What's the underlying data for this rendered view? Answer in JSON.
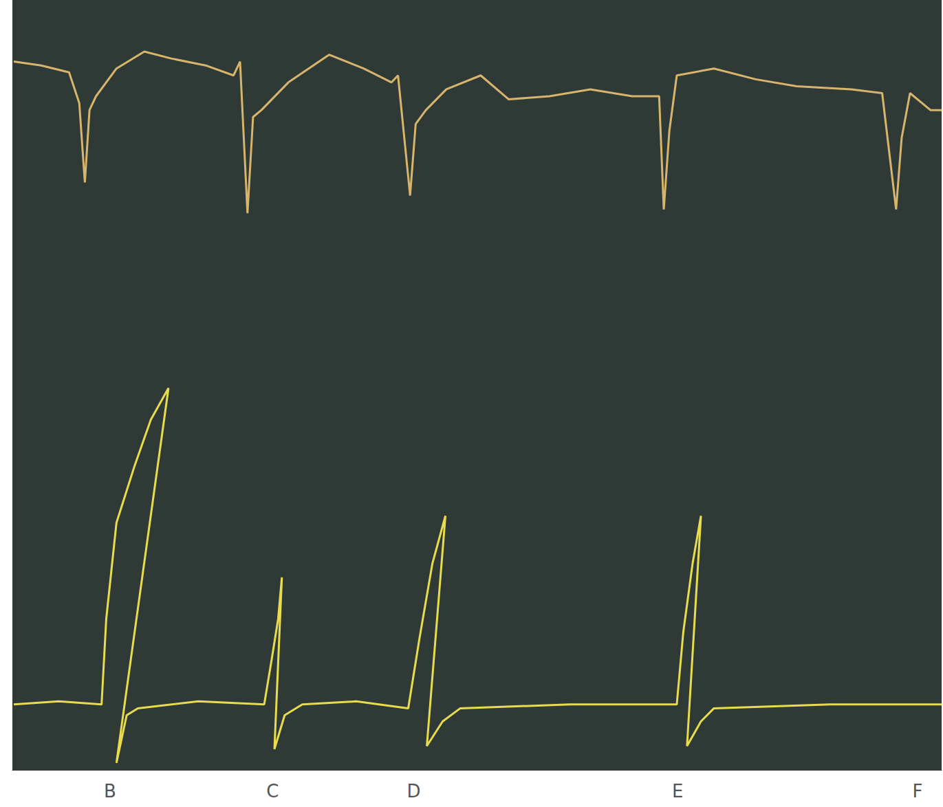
{
  "chart_data": {
    "type": "line",
    "xlim": [
      0,
      100
    ],
    "ylim": [
      0,
      100
    ],
    "xticks": [
      {
        "value": 10.5,
        "label": "B"
      },
      {
        "value": 28.0,
        "label": "C"
      },
      {
        "value": 43.2,
        "label": "D"
      },
      {
        "value": 71.6,
        "label": "E"
      },
      {
        "value": 97.4,
        "label": "F"
      }
    ],
    "tick_labels": "x",
    "grid": false,
    "series": [
      {
        "color": "#d8b56c",
        "x": [
          0.15,
          3.1,
          6.1,
          7.2,
          7.8,
          8.3,
          9.0,
          11.2,
          14.2,
          17.1,
          20.8,
          23.8,
          24.5,
          25.3,
          25.9,
          26.8,
          29.7,
          34.1,
          37.8,
          40.8,
          41.5,
          42.8,
          43.4,
          44.5,
          46.7,
          50.4,
          53.4,
          57.8,
          62.2,
          66.7,
          69.6,
          70.1,
          70.7,
          71.5,
          75.5,
          80.0,
          84.4,
          90.3,
          93.6,
          95.1,
          95.7,
          96.6,
          98.8,
          100
        ],
        "values": [
          92.0,
          91.5,
          90.6,
          86.6,
          76.3,
          85.7,
          87.5,
          91.1,
          93.3,
          92.4,
          91.5,
          90.2,
          92.0,
          72.3,
          84.8,
          85.7,
          89.3,
          92.9,
          91.1,
          89.3,
          90.2,
          74.6,
          83.9,
          85.7,
          88.4,
          90.2,
          87.1,
          87.5,
          88.4,
          87.5,
          87.5,
          72.8,
          83.0,
          90.2,
          91.1,
          89.7,
          88.8,
          88.4,
          87.9,
          72.8,
          82.1,
          87.9,
          85.7,
          85.7
        ]
      },
      {
        "color": "#e8dc4e",
        "x": [
          0.15,
          5,
          9.6,
          10.1,
          11.2,
          13.1,
          14.9,
          16.8,
          11.2,
          12.3,
          13.5,
          20,
          27.1,
          27.9,
          28.6,
          29.0,
          28.2,
          29.3,
          31.2,
          37,
          42.6,
          43.8,
          45.2,
          46.6,
          44.6,
          46.3,
          48.2,
          60,
          71.5,
          72.2,
          73.2,
          74.1,
          72.6,
          74.1,
          75.5,
          88,
          100
        ],
        "values": [
          8.5,
          8.9,
          8.5,
          19.6,
          32.1,
          39.3,
          45.5,
          49.6,
          0.9,
          7.1,
          8.0,
          8.9,
          8.5,
          14.3,
          19.6,
          25.0,
          2.7,
          7.1,
          8.5,
          8.9,
          8.0,
          17.0,
          26.8,
          33.0,
          3.1,
          6.3,
          8.0,
          8.5,
          8.5,
          17.9,
          26.8,
          33.0,
          3.1,
          6.3,
          8.0,
          8.5,
          8.5
        ]
      }
    ]
  }
}
